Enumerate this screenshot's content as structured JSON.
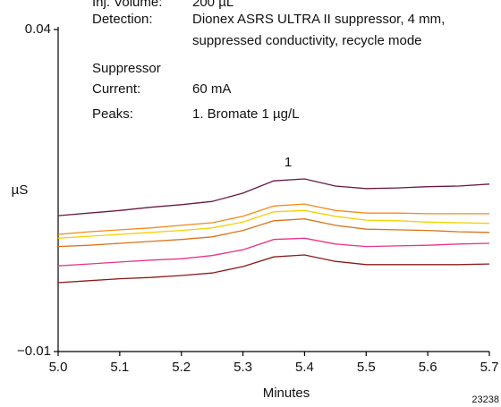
{
  "chart_data": {
    "type": "line",
    "x_label": "Minutes",
    "y_label": "µS",
    "figure_id": "23238",
    "peak_label": "1",
    "notes": [
      {
        "label": "Inj. Volume:",
        "text": "200 µL"
      },
      {
        "label": "Detection:",
        "text": "Dionex ASRS ULTRA II suppressor, 4 mm,"
      },
      {
        "text": "suppressed conductivity, recycle mode"
      },
      {
        "label": "Suppressor"
      },
      {
        "label": "Current:",
        "text": "60 mA"
      },
      {
        "label": "Peaks:",
        "text": "1. Bromate 1 µg/L"
      }
    ],
    "x": [
      5.0,
      5.05,
      5.1,
      5.15,
      5.2,
      5.25,
      5.3,
      5.35,
      5.4,
      5.45,
      5.5,
      5.55,
      5.6,
      5.65,
      5.7
    ],
    "series": [
      {
        "color": "#6a1845",
        "values": [
          0.0111,
          0.0115,
          0.0119,
          0.0124,
          0.0128,
          0.0133,
          0.0146,
          0.0165,
          0.0168,
          0.0157,
          0.0153,
          0.0154,
          0.0156,
          0.0157,
          0.016
        ]
      },
      {
        "color": "#f08a1c",
        "values": [
          0.0082,
          0.0086,
          0.0089,
          0.0092,
          0.0096,
          0.01,
          0.011,
          0.0126,
          0.0129,
          0.0119,
          0.0115,
          0.0115,
          0.0114,
          0.0114,
          0.0114
        ]
      },
      {
        "color": "#f5d000",
        "values": [
          0.0076,
          0.0079,
          0.0082,
          0.0085,
          0.0088,
          0.0092,
          0.0101,
          0.0117,
          0.0119,
          0.011,
          0.0104,
          0.0103,
          0.0101,
          0.01,
          0.0099
        ]
      },
      {
        "color": "#d9731a",
        "values": [
          0.0063,
          0.0065,
          0.0068,
          0.0071,
          0.0074,
          0.0078,
          0.0088,
          0.0103,
          0.0106,
          0.0096,
          0.009,
          0.0089,
          0.0088,
          0.0086,
          0.0085
        ]
      },
      {
        "color": "#e8338a",
        "values": [
          0.0033,
          0.0036,
          0.0039,
          0.0042,
          0.0044,
          0.0049,
          0.0058,
          0.0074,
          0.0076,
          0.0067,
          0.0063,
          0.0064,
          0.0065,
          0.0067,
          0.0068
        ]
      },
      {
        "color": "#8b1a1a",
        "values": [
          0.0007,
          0.001,
          0.0013,
          0.0015,
          0.0018,
          0.0022,
          0.0032,
          0.0047,
          0.005,
          0.004,
          0.0035,
          0.0035,
          0.0035,
          0.0035,
          0.0036
        ]
      }
    ],
    "xlim": [
      5.0,
      5.7
    ],
    "xticks": [
      {
        "value": 5.0,
        "label": "5.0"
      },
      5.1,
      5.2,
      5.3,
      5.4,
      5.5,
      5.6,
      5.7
    ],
    "ylim": [
      -0.01,
      0.04
    ],
    "yticks": [
      {
        "value": -0.01,
        "label": "−0.01"
      },
      0.04
    ],
    "grid": false
  }
}
